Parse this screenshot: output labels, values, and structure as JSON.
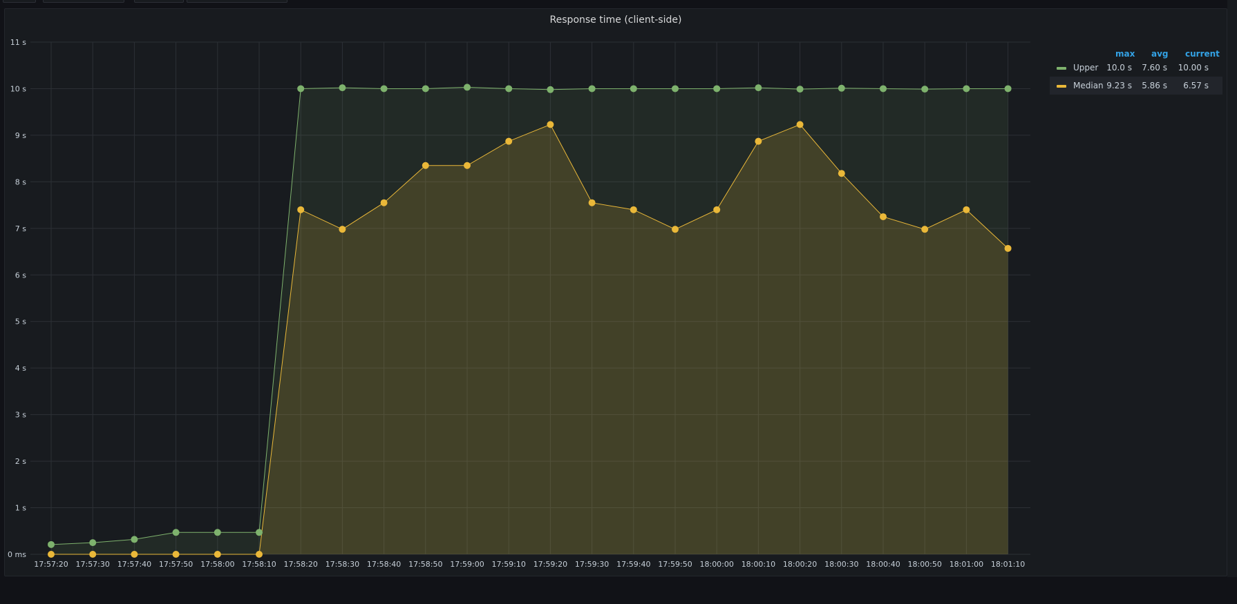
{
  "panel": {
    "title": "Response time (client-side)"
  },
  "chart_data": {
    "type": "line",
    "title": "Response time (client-side)",
    "ylim": [
      0,
      11
    ],
    "y_ticks": [
      {
        "value": 0,
        "label": "0 ms"
      },
      {
        "value": 1,
        "label": "1 s"
      },
      {
        "value": 2,
        "label": "2 s"
      },
      {
        "value": 3,
        "label": "3 s"
      },
      {
        "value": 4,
        "label": "4 s"
      },
      {
        "value": 5,
        "label": "5 s"
      },
      {
        "value": 6,
        "label": "6 s"
      },
      {
        "value": 7,
        "label": "7 s"
      },
      {
        "value": 8,
        "label": "8 s"
      },
      {
        "value": 9,
        "label": "9 s"
      },
      {
        "value": 10,
        "label": "10 s"
      },
      {
        "value": 11,
        "label": "11 s"
      }
    ],
    "x": [
      "17:57:20",
      "17:57:30",
      "17:57:40",
      "17:57:50",
      "17:58:00",
      "17:58:10",
      "17:58:20",
      "17:58:30",
      "17:58:40",
      "17:58:50",
      "17:59:00",
      "17:59:10",
      "17:59:20",
      "17:59:30",
      "17:59:40",
      "17:59:50",
      "18:00:00",
      "18:00:10",
      "18:00:20",
      "18:00:30",
      "18:00:40",
      "18:00:50",
      "18:01:00",
      "18:01:10"
    ],
    "grid": true,
    "legend_position": "right",
    "series": [
      {
        "name": "Upper",
        "color": "#7eb26d",
        "values": [
          0.21,
          0.25,
          0.32,
          0.47,
          0.47,
          0.47,
          10.0,
          10.02,
          10.0,
          10.0,
          10.03,
          10.0,
          9.98,
          10.0,
          10.0,
          10.0,
          10.0,
          10.02,
          9.99,
          10.01,
          10.0,
          9.99,
          10.0,
          10.0
        ],
        "legend": {
          "max": "10.0 s",
          "avg": "7.60 s",
          "current": "10.00 s"
        }
      },
      {
        "name": "Median",
        "color": "#eab839",
        "values": [
          0.0,
          0.0,
          0.0,
          0.0,
          0.0,
          0.0,
          7.4,
          6.98,
          7.55,
          8.35,
          8.35,
          8.87,
          9.23,
          7.55,
          7.4,
          6.98,
          7.4,
          8.87,
          9.23,
          8.18,
          7.25,
          6.98,
          7.4,
          6.57
        ],
        "legend": {
          "max": "9.23 s",
          "avg": "5.86 s",
          "current": "6.57 s"
        }
      }
    ]
  },
  "legend": {
    "headers": {
      "max": "max",
      "avg": "avg",
      "current": "current"
    }
  }
}
